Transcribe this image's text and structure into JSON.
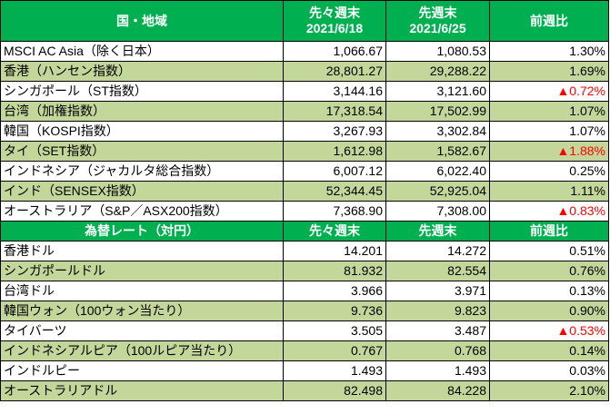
{
  "stocks": {
    "headers": [
      "国・地域",
      "先々週末",
      "先週末",
      "前週比"
    ],
    "dates": [
      "2021/6/18",
      "2021/6/25"
    ],
    "rows": [
      {
        "name": "MSCI AC Asia（除く日本）",
        "prev2": "1,066.67",
        "prev1": "1,080.53",
        "change": "1.30%",
        "down": false
      },
      {
        "name": "香港（ハンセン指数）",
        "prev2": "28,801.27",
        "prev1": "29,288.22",
        "change": "1.69%",
        "down": false
      },
      {
        "name": "シンガポール（ST指数）",
        "prev2": "3,144.16",
        "prev1": "3,121.60",
        "change": "▲0.72%",
        "down": true
      },
      {
        "name": "台湾（加権指数）",
        "prev2": "17,318.54",
        "prev1": "17,502.99",
        "change": "1.07%",
        "down": false
      },
      {
        "name": "韓国（KOSPI指数）",
        "prev2": "3,267.93",
        "prev1": "3,302.84",
        "change": "1.07%",
        "down": false
      },
      {
        "name": "タイ（SET指数）",
        "prev2": "1,612.98",
        "prev1": "1,582.67",
        "change": "▲1.88%",
        "down": true
      },
      {
        "name": "インドネシア（ジャカルタ総合指数）",
        "prev2": "6,007.12",
        "prev1": "6,022.40",
        "change": "0.25%",
        "down": false
      },
      {
        "name": "インド（SENSEX指数）",
        "prev2": "52,344.45",
        "prev1": "52,925.04",
        "change": "1.11%",
        "down": false
      },
      {
        "name": "オーストラリア（S&P／ASX200指数）",
        "prev2": "7,368.90",
        "prev1": "7,308.00",
        "change": "▲0.83%",
        "down": true
      }
    ]
  },
  "fx": {
    "headers": [
      "為替レート（対円）",
      "先々週末",
      "先週末",
      "前週比"
    ],
    "rows": [
      {
        "name": "香港ドル",
        "prev2": "14.201",
        "prev1": "14.272",
        "change": "0.51%",
        "down": false
      },
      {
        "name": "シンガポールドル",
        "prev2": "81.932",
        "prev1": "82.554",
        "change": "0.76%",
        "down": false
      },
      {
        "name": "台湾ドル",
        "prev2": "3.966",
        "prev1": "3.971",
        "change": "0.13%",
        "down": false
      },
      {
        "name": "韓国ウォン（100ウォン当たり）",
        "prev2": "9.736",
        "prev1": "9.823",
        "change": "0.90%",
        "down": false
      },
      {
        "name": "タイバーツ",
        "prev2": "3.505",
        "prev1": "3.487",
        "change": "▲0.53%",
        "down": true
      },
      {
        "name": "インドネシアルピア（100ルピア当たり）",
        "prev2": "0.767",
        "prev1": "0.768",
        "change": "0.14%",
        "down": false
      },
      {
        "name": "インドルピー",
        "prev2": "1.493",
        "prev1": "1.493",
        "change": "0.03%",
        "down": false
      },
      {
        "name": "オーストラリアドル",
        "prev2": "82.498",
        "prev1": "84.228",
        "change": "2.10%",
        "down": false
      }
    ]
  },
  "colors": {
    "header_bg": "#00b050",
    "header_text": "#ffffff",
    "alt_row": "#c4d79b",
    "down_text": "#ff0000"
  }
}
